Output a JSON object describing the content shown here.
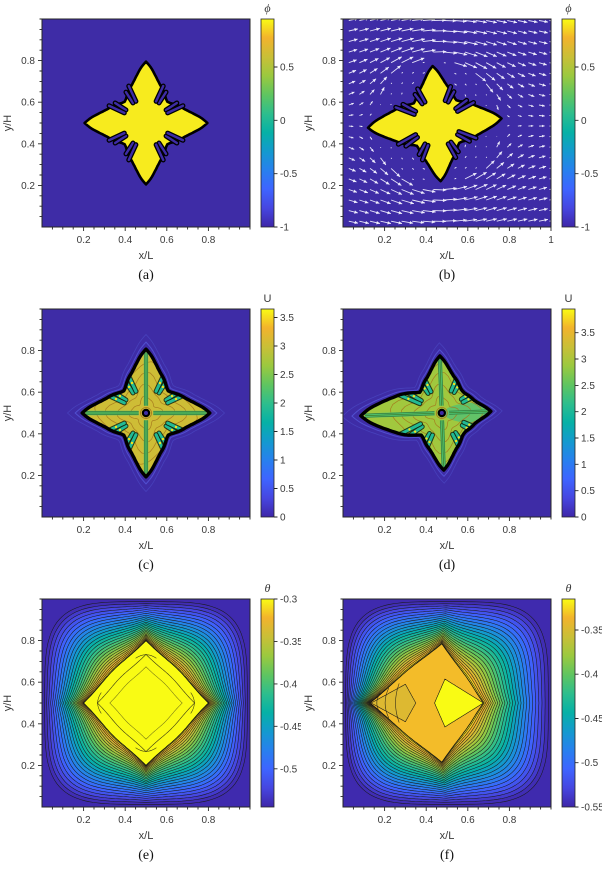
{
  "figure_title": "dendrite-growth-simulation-panels",
  "colors": {
    "background": "#ffffff",
    "field_low_blue": "#3E2CA6",
    "dendrite_yellow": "#F7EB1E",
    "interface_black": "#000000",
    "arrow_white": "#f4f3ff",
    "axis_text": "#3a3a3a",
    "axis_frame": "#262626",
    "parula_stops": [
      "#3E26A8",
      "#4646E0",
      "#3E64FF",
      "#2780EE",
      "#139ACE",
      "#06B1A6",
      "#2DBE8D",
      "#5FC560",
      "#9BC93F",
      "#C9BF37",
      "#F2B32C",
      "#F9FB14"
    ]
  },
  "chart_data": [
    {
      "id": "a",
      "caption": "(a)",
      "type": "phase",
      "xlabel": "x/L",
      "ylabel": "y/H",
      "xlim": [
        0,
        1
      ],
      "ylim": [
        0,
        1
      ],
      "xtick_values": [
        0.2,
        0.4,
        0.6,
        0.8
      ],
      "xtick_labels": [
        "0.2",
        "0.4",
        "0.6",
        "0.8"
      ],
      "ytick_values": [
        0.2,
        0.4,
        0.6,
        0.8
      ],
      "ytick_labels": [
        "0.2",
        "0.4",
        "0.6",
        "0.8"
      ],
      "minor_step": 0.05,
      "colorbar": {
        "label": "ϕ",
        "greek": true,
        "range": [
          -1,
          0.95
        ],
        "tick_values": [
          0.5,
          0,
          -0.5,
          -1
        ],
        "tick_labels": [
          "0.5",
          "0",
          "-0.5",
          "-1"
        ]
      },
      "field_note": "phase field: solid dendrite phi=1 (yellow) in liquid phi=-1 (blue)",
      "shape": {
        "center": [
          0.5,
          0.5
        ],
        "rot": 0,
        "scale": 1,
        "arm_scale": [
          1,
          1,
          1,
          1
        ],
        "octant_r": [
          0.295,
          0.268,
          0.238,
          0.214,
          0.196,
          0.184,
          0.172,
          0.16,
          0.15,
          0.145
        ],
        "slit_offsets": [
          12,
          20
        ],
        "slit_r_in": 0.115
      }
    },
    {
      "id": "b",
      "caption": "(b)",
      "type": "phase-quiver",
      "xlabel": "x/L",
      "ylabel": "y/H",
      "xlim": [
        0,
        1
      ],
      "ylim": [
        0,
        1
      ],
      "xtick_values": [
        0.2,
        0.4,
        0.6,
        0.8,
        1
      ],
      "xtick_labels": [
        "0.2",
        "0.4",
        "0.6",
        "0.8",
        "1"
      ],
      "ytick_values": [
        0.2,
        0.4,
        0.6,
        0.8
      ],
      "ytick_labels": [
        "0.2",
        "0.4",
        "0.6",
        "0.8"
      ],
      "minor_step": 0.05,
      "colorbar": {
        "label": "ϕ",
        "greek": true,
        "range": [
          -1,
          0.95
        ],
        "tick_values": [
          0.5,
          0,
          -0.5,
          -1
        ],
        "tick_labels": [
          "0.5",
          "0",
          "-0.5",
          "-1"
        ]
      },
      "field_note": "phase field with melt-flow velocity vectors, flow left to right around dendrite",
      "shape": {
        "center": [
          0.45,
          0.5
        ],
        "rot": 4,
        "scale": 1,
        "arm_scale": [
          1.06,
          0.93,
          1.12,
          0.95
        ],
        "octant_r": [
          0.295,
          0.268,
          0.238,
          0.214,
          0.196,
          0.184,
          0.172,
          0.16,
          0.15,
          0.145
        ],
        "slit_offsets": [
          12,
          20
        ],
        "slit_r_in": 0.115
      },
      "quiver": {
        "nx": 20,
        "ny": 20,
        "cylinder_radius": 0.3,
        "flow_dir": "+x",
        "len_scale": 9
      }
    },
    {
      "id": "c",
      "caption": "(c)",
      "type": "solutal",
      "xlabel": "x/L",
      "ylabel": "y/H",
      "xlim": [
        0,
        1
      ],
      "ylim": [
        0,
        1
      ],
      "xtick_values": [
        0.2,
        0.4,
        0.6,
        0.8
      ],
      "xtick_labels": [
        "0.2",
        "0.4",
        "0.6",
        "0.8"
      ],
      "ytick_values": [
        0.2,
        0.4,
        0.6,
        0.8
      ],
      "ytick_labels": [
        "0.2",
        "0.4",
        "0.6",
        "0.8"
      ],
      "minor_step": 0.05,
      "colorbar": {
        "label": "U",
        "greek": false,
        "range": [
          0,
          3.65
        ],
        "tick_values": [
          3.5,
          3,
          2.5,
          2,
          1.5,
          1,
          0.5,
          0
        ],
        "tick_labels": [
          "3.5",
          "3",
          "2.5",
          "2",
          "1.5",
          "1",
          "0.5",
          "0"
        ]
      },
      "field_note": "solute field U inside dendrite, U~0 in far liquid",
      "shape": {
        "center": [
          0.5,
          0.5
        ],
        "rot": 0,
        "scale": 1.04,
        "arm_scale": [
          1,
          1,
          1,
          1
        ],
        "octant_r": [
          0.295,
          0.268,
          0.238,
          0.214,
          0.196,
          0.184,
          0.172,
          0.16,
          0.15,
          0.145
        ],
        "slit_offsets": [
          12,
          20
        ],
        "slit_r_in": 0.115
      },
      "interior": {
        "fill_t": 0.83,
        "band_t": 0.6,
        "right_overlay": false
      }
    },
    {
      "id": "d",
      "caption": "(d)",
      "type": "solutal",
      "xlabel": "x/L",
      "ylabel": "y/H",
      "xlim": [
        0,
        1
      ],
      "ylim": [
        0,
        1
      ],
      "xtick_values": [
        0.2,
        0.4,
        0.6,
        0.8
      ],
      "xtick_labels": [
        "0.2",
        "0.4",
        "0.6",
        "0.8"
      ],
      "ytick_values": [
        0.2,
        0.4,
        0.6,
        0.8
      ],
      "ytick_labels": [
        "0.2",
        "0.4",
        "0.6",
        "0.8"
      ],
      "minor_step": 0.05,
      "colorbar": {
        "label": "U",
        "greek": false,
        "range": [
          0,
          3.95
        ],
        "tick_values": [
          3.5,
          3,
          2.5,
          2,
          1.5,
          1,
          0.5,
          0
        ],
        "tick_labels": [
          "3.5",
          "3",
          "2.5",
          "2",
          "1.5",
          "1",
          "0.5",
          "0"
        ]
      },
      "field_note": "solute field U with flow: upstream (left) arm elongated",
      "shape": {
        "center": [
          0.475,
          0.5
        ],
        "rot": 2,
        "scale": 1,
        "arm_scale": [
          0.8,
          0.93,
          1.32,
          0.93
        ],
        "octant_r": [
          0.295,
          0.268,
          0.238,
          0.214,
          0.196,
          0.184,
          0.172,
          0.16,
          0.15,
          0.145
        ],
        "slit_offsets": [
          12,
          20
        ],
        "slit_r_in": 0.115
      },
      "interior": {
        "fill_t": 0.74,
        "band_t": 0.6,
        "right_overlay": true
      }
    },
    {
      "id": "e",
      "caption": "(e)",
      "type": "contour",
      "xlabel": "x/L",
      "ylabel": "y/H",
      "xlim": [
        0,
        1
      ],
      "ylim": [
        0,
        1
      ],
      "xtick_values": [
        0.2,
        0.4,
        0.6,
        0.8
      ],
      "xtick_labels": [
        "0.2",
        "0.4",
        "0.6",
        "0.8"
      ],
      "ytick_values": [
        0.2,
        0.4,
        0.6,
        0.8
      ],
      "ytick_labels": [
        "0.2",
        "0.4",
        "0.6",
        "0.8"
      ],
      "minor_step": 0.05,
      "colorbar": {
        "label": "θ",
        "greek": true,
        "range": [
          -0.545,
          -0.3
        ],
        "tick_values": [
          -0.3,
          -0.35,
          -0.4,
          -0.45,
          -0.5
        ],
        "tick_labels": [
          "-0.3",
          "-0.35",
          "-0.4",
          "-0.45",
          "-0.5"
        ]
      },
      "field_note": "thermal field theta, symmetric four-fold contours",
      "contour": {
        "levels": 26,
        "gamma": 1.35,
        "bump": 0.05,
        "outer_half": 0.487,
        "center": [
          0.5,
          0.5
        ],
        "tips": [
          0.3,
          0.3,
          0.3,
          0.3
        ],
        "core_t": 1.0
      }
    },
    {
      "id": "f",
      "caption": "(f)",
      "type": "contour",
      "xlabel": "x/L",
      "ylabel": "y/H",
      "xlim": [
        0,
        1
      ],
      "ylim": [
        0,
        1
      ],
      "xtick_values": [
        0.2,
        0.4,
        0.6,
        0.8
      ],
      "xtick_labels": [
        "0.2",
        "0.4",
        "0.6",
        "0.8"
      ],
      "ytick_values": [
        0.2,
        0.4,
        0.6,
        0.8
      ],
      "ytick_labels": [
        "0.2",
        "0.4",
        "0.6",
        "0.8"
      ],
      "minor_step": 0.05,
      "colorbar": {
        "label": "θ",
        "greek": true,
        "range": [
          -0.55,
          -0.315
        ],
        "tick_values": [
          -0.35,
          -0.4,
          -0.45,
          -0.5,
          -0.55
        ],
        "tick_labels": [
          "-0.35",
          "-0.4",
          "-0.45",
          "-0.5",
          "-0.55"
        ]
      },
      "field_note": "thermal field theta with flow: isotherms compressed upstream (left), widened downstream",
      "contour": {
        "levels": 26,
        "gamma": 1.28,
        "bump": 0.03,
        "outer_half": 0.487,
        "center": [
          0.475,
          0.5
        ],
        "tips": [
          0.2,
          0.285,
          0.345,
          0.285
        ],
        "core_t": 0.92,
        "lobe": {
          "center": [
            0.49,
            0.5
          ],
          "tips": [
            0.185,
            0.115,
            0.05,
            0.115
          ]
        },
        "cap": {
          "center": [
            0.3,
            0.5
          ],
          "tips": [
            0.05,
            0.09,
            0.165,
            0.09
          ]
        }
      }
    }
  ]
}
